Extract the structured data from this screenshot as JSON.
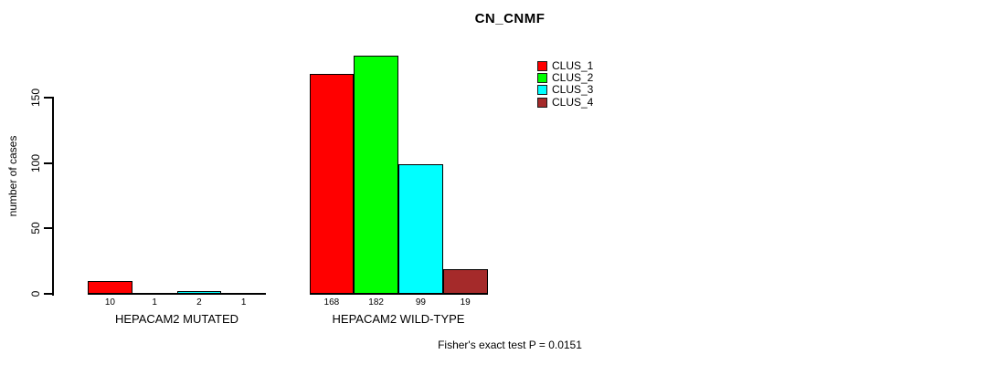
{
  "figure": {
    "title": "CN_CNMF",
    "ylabel": "number of cases",
    "annotation": "Fisher's exact test P = 0.0151"
  },
  "chart_data": {
    "type": "bar",
    "title": "CN_CNMF",
    "xlabel": "",
    "ylabel": "number of cases",
    "ylim": [
      0,
      185
    ],
    "yticks": [
      0,
      50,
      100,
      150
    ],
    "grid": false,
    "legend_position": "top-right",
    "bar_value_labels_shown": true,
    "groups": [
      {
        "label": "HEPACAM2 MUTATED",
        "values": [
          10,
          1,
          2,
          1
        ]
      },
      {
        "label": "HEPACAM2 WILD-TYPE",
        "values": [
          168,
          182,
          99,
          19
        ]
      }
    ],
    "series": [
      {
        "name": "CLUS_1",
        "color": "#ff0000"
      },
      {
        "name": "CLUS_2",
        "color": "#00ff00"
      },
      {
        "name": "CLUS_3",
        "color": "#00ffff"
      },
      {
        "name": "CLUS_4",
        "color": "#a52a2a"
      }
    ],
    "annotation": "Fisher's exact test P = 0.0151",
    "axis_color": "#000000"
  }
}
